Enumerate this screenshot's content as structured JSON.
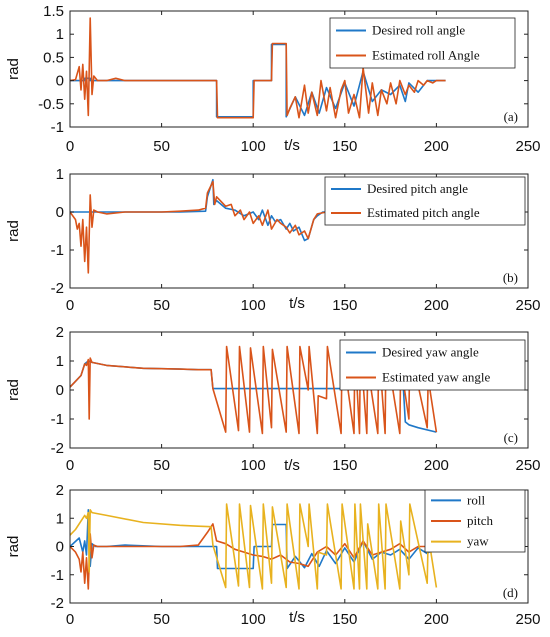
{
  "colors": {
    "desired": "#1f78c8",
    "estimated": "#d9541a",
    "yaw": "#e8b21f",
    "axis": "#222222"
  },
  "chart_data": [
    {
      "type": "line",
      "panel_label": "(a)",
      "ylabel": "rad",
      "xlabel": "t/s",
      "xlim": [
        0,
        250
      ],
      "ylim": [
        -1,
        1.5
      ],
      "xticks": [
        0,
        50,
        100,
        150,
        200,
        250
      ],
      "yticks": [
        -1,
        -0.5,
        0,
        0.5,
        1,
        1.5
      ],
      "xtick_labels": [
        "0",
        "50",
        "100",
        "150",
        "200",
        "250"
      ],
      "ytick_labels": [
        "-1",
        "-0.5",
        "0",
        "0.5",
        "1",
        "1.5"
      ],
      "legend_position": "top-right",
      "grid": false,
      "series": [
        {
          "name": "Desired roll angle",
          "color_key": "desired",
          "x": [
            0,
            8,
            8,
            11,
            11,
            80,
            80,
            100,
            100,
            110,
            110,
            118,
            118,
            123,
            128,
            132,
            136,
            140,
            145,
            150,
            155,
            160,
            165,
            170,
            175,
            180,
            183,
            185,
            190,
            195,
            200,
            205
          ],
          "y": [
            0,
            0,
            0.05,
            0.05,
            0,
            0,
            -0.78,
            -0.78,
            0,
            0,
            0.78,
            0.78,
            -0.78,
            -0.35,
            -0.75,
            -0.25,
            -0.7,
            -0.15,
            -0.6,
            -0.05,
            -0.55,
            0.2,
            -0.45,
            -0.2,
            -0.3,
            -0.1,
            -0.45,
            -0.05,
            -0.25,
            0,
            0,
            0
          ]
        },
        {
          "name": "Estimated roll Angle",
          "color_key": "estimated",
          "x": [
            0,
            3,
            5,
            6,
            7,
            8,
            9,
            10,
            11,
            12,
            13,
            15,
            20,
            25,
            30,
            80,
            80.5,
            100,
            100.5,
            110,
            110.5,
            118,
            118.5,
            120,
            123,
            125,
            128,
            130,
            132,
            135,
            137,
            140,
            142,
            145,
            148,
            150,
            152,
            155,
            158,
            160,
            163,
            165,
            168,
            170,
            173,
            175,
            178,
            180,
            183,
            185,
            188,
            190,
            193,
            195,
            198,
            200,
            205
          ],
          "y": [
            0,
            0.02,
            0.3,
            -0.2,
            0.35,
            -0.4,
            0.2,
            -0.75,
            1.35,
            -0.3,
            0.1,
            0,
            0,
            0.05,
            0,
            0,
            -0.8,
            -0.8,
            0,
            0,
            0.8,
            0.8,
            -0.75,
            -0.6,
            -0.35,
            -0.8,
            -0.1,
            -0.7,
            -0.25,
            -0.75,
            0,
            -0.65,
            -0.15,
            -0.8,
            -0.2,
            0,
            -0.7,
            -0.3,
            -0.8,
            0.28,
            -0.7,
            -0.05,
            -0.75,
            -0.2,
            -0.5,
            -0.05,
            -0.5,
            0,
            -0.3,
            -0.1,
            -0.25,
            0,
            -0.1,
            0,
            -0.05,
            0,
            0
          ]
        }
      ]
    },
    {
      "type": "line",
      "panel_label": "(b)",
      "ylabel": "rad",
      "xlabel": "t/s",
      "xlim": [
        0,
        250
      ],
      "ylim": [
        -2,
        1
      ],
      "xticks": [
        0,
        50,
        100,
        150,
        200,
        250
      ],
      "yticks": [
        -2,
        -1,
        0,
        1
      ],
      "xtick_labels": [
        "0",
        "50",
        "100",
        "150",
        "200",
        "250"
      ],
      "ytick_labels": [
        "-2",
        "-1",
        "0",
        "1"
      ],
      "legend_position": "top-right",
      "grid": false,
      "series": [
        {
          "name": "Desired pitch angle",
          "color_key": "desired",
          "x": [
            0,
            20,
            40,
            60,
            74,
            75,
            78,
            78.5,
            80,
            85,
            90,
            95,
            100,
            103,
            105,
            108,
            110,
            112,
            115,
            118,
            120,
            122,
            125,
            128,
            130,
            133,
            135,
            138,
            140,
            142,
            145,
            150,
            160,
            180,
            205
          ],
          "y": [
            0,
            0,
            0,
            0,
            0.02,
            0.4,
            0.85,
            0.2,
            0.3,
            0.1,
            0.05,
            -0.1,
            0,
            -0.2,
            0.05,
            -0.35,
            -0.1,
            -0.25,
            -0.2,
            -0.45,
            -0.3,
            -0.5,
            -0.4,
            -0.75,
            -0.7,
            -0.2,
            -0.1,
            0,
            0,
            0,
            0,
            0,
            0,
            0,
            0
          ]
        },
        {
          "name": "Estimated pitch angle",
          "color_key": "estimated",
          "x": [
            0,
            3,
            4,
            5,
            6,
            7,
            8,
            9,
            10,
            11,
            12,
            13,
            15,
            20,
            30,
            40,
            50,
            60,
            70,
            74,
            75,
            77,
            78,
            79,
            80,
            82,
            85,
            88,
            90,
            93,
            95,
            98,
            100,
            103,
            105,
            108,
            110,
            113,
            115,
            118,
            120,
            123,
            125,
            128,
            130,
            133,
            135,
            140,
            145,
            150,
            155,
            160,
            170,
            180,
            190,
            205
          ],
          "y": [
            0,
            -0.2,
            -0.45,
            -0.3,
            -0.9,
            -0.2,
            -1.3,
            -0.4,
            -1.6,
            0.45,
            -0.4,
            0.05,
            0,
            -0.05,
            0,
            0,
            0,
            0.02,
            0.05,
            0.1,
            0.5,
            0.7,
            0.8,
            0.2,
            0.4,
            0.3,
            0.15,
            0.2,
            -0.1,
            0.05,
            -0.2,
            0,
            -0.3,
            -0.1,
            -0.35,
            0.05,
            -0.45,
            -0.2,
            -0.3,
            -0.4,
            -0.55,
            -0.35,
            -0.6,
            -0.5,
            -0.7,
            -0.2,
            -0.05,
            0,
            0.02,
            0,
            0,
            0,
            0,
            0,
            0,
            0
          ]
        }
      ]
    },
    {
      "type": "line",
      "panel_label": "(c)",
      "ylabel": "rad",
      "xlabel": "t/s",
      "xlim": [
        0,
        250
      ],
      "ylim": [
        -2,
        2
      ],
      "xticks": [
        0,
        50,
        100,
        150,
        200,
        250
      ],
      "yticks": [
        -2,
        -1,
        0,
        1,
        2
      ],
      "xtick_labels": [
        "0",
        "50",
        "100",
        "150",
        "200",
        "250"
      ],
      "ytick_labels": [
        "-2",
        "-1",
        "0",
        "1",
        "2"
      ],
      "legend_position": "top-right",
      "grid": false,
      "series": [
        {
          "name": "Desired yaw angle",
          "color_key": "desired",
          "x": [
            0,
            3,
            6,
            8,
            10,
            12,
            20,
            40,
            60,
            70,
            77,
            78,
            90,
            110,
            130,
            150,
            170,
            182,
            183,
            185,
            190,
            200
          ],
          "y": [
            0.1,
            0.3,
            0.5,
            0.9,
            1.0,
            0.95,
            0.85,
            0.75,
            0.72,
            0.7,
            0.7,
            0.05,
            0.05,
            0.05,
            0.05,
            0.05,
            0.05,
            0.05,
            -1.1,
            -1.2,
            -1.3,
            -1.45
          ]
        },
        {
          "name": "Estimated yaw angle",
          "color_key": "estimated",
          "x": [
            0,
            3,
            6,
            8,
            9,
            10,
            10.5,
            11,
            12,
            20,
            40,
            60,
            70,
            77,
            78,
            85,
            85.5,
            92,
            92.5,
            98,
            98.5,
            105,
            105.5,
            110,
            110.5,
            118,
            118.5,
            125,
            125.5,
            130,
            130.5,
            135,
            135.5,
            140,
            140.5,
            148,
            148.5,
            155,
            155.5,
            158,
            158.5,
            162,
            162.5,
            168,
            168.5,
            172,
            172.5,
            180,
            180.5,
            185,
            185.5,
            195,
            195.5,
            200
          ],
          "y": [
            0.1,
            0.3,
            0.5,
            0.9,
            0.85,
            1.05,
            -1.0,
            1.1,
            0.95,
            0.85,
            0.75,
            0.72,
            0.7,
            0.7,
            0.05,
            -1.45,
            1.5,
            -1.4,
            1.5,
            -1.45,
            1.45,
            -1.5,
            1.5,
            -1.3,
            1.4,
            -1.45,
            1.5,
            -1.5,
            1.5,
            0,
            1.5,
            -1.5,
            -0.2,
            -0.3,
            1.5,
            -1.5,
            1.5,
            -1.5,
            1.5,
            -1.5,
            1.5,
            -1.5,
            0.8,
            -1.5,
            1.5,
            -1.5,
            1.5,
            -1.5,
            0.9,
            -1.0,
            1.5,
            -1.3,
            0.4,
            -1.45
          ]
        }
      ]
    },
    {
      "type": "line",
      "panel_label": "(d)",
      "ylabel": "rad",
      "xlabel": "t/s",
      "xlim": [
        0,
        250
      ],
      "ylim": [
        -2,
        2
      ],
      "xticks": [
        0,
        50,
        100,
        150,
        200,
        250
      ],
      "yticks": [
        -2,
        -1,
        0,
        1,
        2
      ],
      "xtick_labels": [
        "0",
        "50",
        "100",
        "150",
        "200",
        "250"
      ],
      "ytick_labels": [
        "-2",
        "-1",
        "0",
        "1",
        "2"
      ],
      "legend_position": "top-right",
      "grid": false,
      "series": [
        {
          "name": "roll",
          "color_key": "desired",
          "x": [
            0,
            5,
            7,
            8,
            9,
            10,
            11,
            12,
            14,
            20,
            30,
            50,
            80,
            80.5,
            100,
            100.5,
            110,
            110.5,
            118,
            118.5,
            123,
            128,
            132,
            136,
            140,
            145,
            150,
            155,
            160,
            165,
            170,
            175,
            180,
            185,
            190,
            195,
            200
          ],
          "y": [
            0,
            0.3,
            -0.2,
            0.2,
            -0.3,
            1.3,
            -0.7,
            0.1,
            0,
            0,
            0.05,
            0,
            0,
            -0.78,
            -0.78,
            0,
            0,
            0.78,
            0.78,
            -0.78,
            -0.35,
            -0.75,
            -0.25,
            -0.7,
            -0.15,
            -0.6,
            -0.05,
            -0.55,
            0.2,
            -0.45,
            -0.2,
            -0.3,
            -0.1,
            -0.45,
            -0.05,
            -0.25,
            0
          ]
        },
        {
          "name": "pitch",
          "color_key": "estimated",
          "x": [
            0,
            3,
            5,
            6,
            7,
            8,
            9,
            10,
            11,
            12,
            13,
            15,
            20,
            40,
            60,
            70,
            75,
            78,
            80,
            85,
            90,
            95,
            100,
            105,
            110,
            115,
            120,
            125,
            130,
            135,
            140,
            145,
            150,
            155,
            160,
            165,
            170,
            175,
            180,
            185,
            190,
            195,
            200
          ],
          "y": [
            0,
            -0.2,
            -0.45,
            -0.9,
            -0.2,
            -1.3,
            -0.4,
            -1.5,
            0.45,
            -0.4,
            0.05,
            0,
            0,
            0,
            0,
            0.05,
            0.5,
            0.8,
            0.2,
            0.1,
            -0.1,
            -0.2,
            -0.3,
            -0.35,
            -0.45,
            -0.3,
            -0.55,
            -0.6,
            -0.7,
            -0.2,
            0,
            -0.3,
            0.1,
            -0.4,
            0.2,
            -0.3,
            -0.2,
            -0.1,
            0.1,
            -0.2,
            0,
            0,
            0
          ]
        },
        {
          "name": "yaw",
          "color_key": "yaw",
          "x": [
            0,
            3,
            6,
            8,
            9,
            10,
            10.5,
            11,
            12,
            20,
            40,
            60,
            70,
            77,
            78,
            85,
            85.5,
            92,
            92.5,
            98,
            98.5,
            105,
            105.5,
            110,
            110.5,
            118,
            118.5,
            125,
            125.5,
            130,
            130.5,
            135,
            135.5,
            140,
            140.5,
            148,
            148.5,
            155,
            155.5,
            158,
            158.5,
            162,
            162.5,
            168,
            168.5,
            172,
            172.5,
            180,
            180.5,
            185,
            185.5,
            195,
            195.5,
            200
          ],
          "y": [
            0.4,
            0.6,
            0.9,
            1.1,
            1.0,
            1.2,
            -0.9,
            1.3,
            1.2,
            1.1,
            0.85,
            0.75,
            0.72,
            0.7,
            0.05,
            -1.45,
            1.5,
            -1.4,
            1.5,
            -1.45,
            1.45,
            -1.5,
            1.5,
            -1.3,
            1.4,
            -1.45,
            1.5,
            -1.5,
            1.5,
            0,
            1.5,
            -1.5,
            -0.2,
            -0.3,
            1.5,
            -1.5,
            1.5,
            -1.5,
            1.5,
            -1.5,
            1.5,
            -1.5,
            0.8,
            -1.5,
            1.5,
            -1.5,
            1.5,
            -1.5,
            0.9,
            -1.0,
            1.5,
            -1.3,
            0.4,
            -1.45
          ]
        }
      ]
    }
  ]
}
